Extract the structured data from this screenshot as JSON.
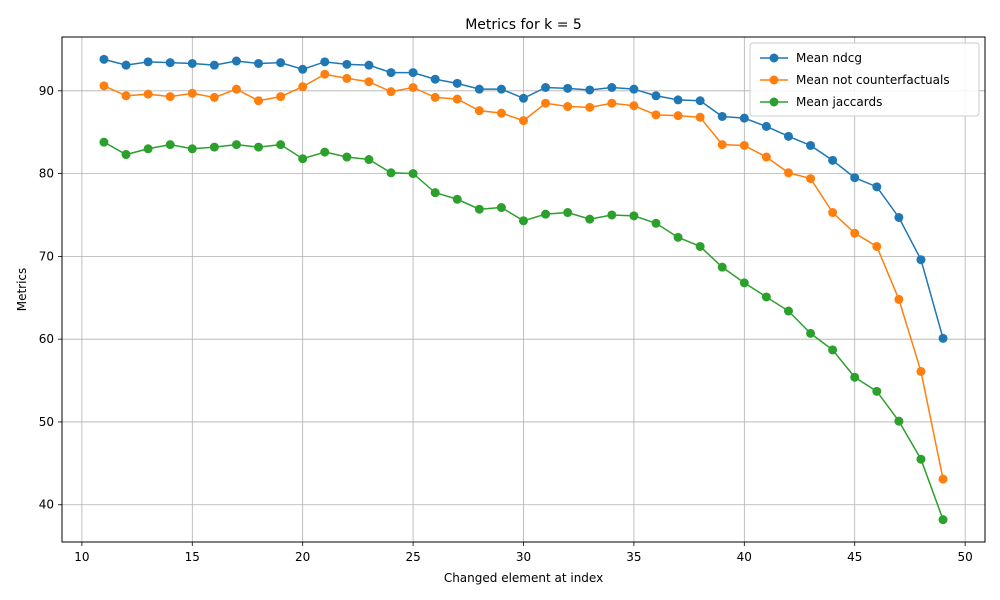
{
  "chart_data": {
    "type": "line",
    "title": "Metrics for k = 5",
    "xlabel": "Changed element at index",
    "ylabel": "Metrics",
    "xlim": [
      9.1,
      50.9
    ],
    "ylim": [
      35.5,
      96.5
    ],
    "xticks": [
      10,
      15,
      20,
      25,
      30,
      35,
      40,
      45,
      50
    ],
    "yticks": [
      40,
      50,
      60,
      70,
      80,
      90
    ],
    "grid": true,
    "legend_position": "top-right",
    "x": [
      11,
      12,
      13,
      14,
      15,
      16,
      17,
      18,
      19,
      20,
      21,
      22,
      23,
      24,
      25,
      26,
      27,
      28,
      29,
      30,
      31,
      32,
      33,
      34,
      35,
      36,
      37,
      38,
      39,
      40,
      41,
      42,
      43,
      44,
      45,
      46,
      47,
      48,
      49
    ],
    "series": [
      {
        "name": "Mean ndcg",
        "color": "#1f77b4",
        "values": [
          93.8,
          93.1,
          93.5,
          93.4,
          93.3,
          93.1,
          93.6,
          93.3,
          93.4,
          92.6,
          93.5,
          93.2,
          93.1,
          92.2,
          92.2,
          91.4,
          90.9,
          90.2,
          90.2,
          89.1,
          90.4,
          90.3,
          90.1,
          90.4,
          90.2,
          89.4,
          88.9,
          88.8,
          86.9,
          86.7,
          85.7,
          84.5,
          83.4,
          81.6,
          79.5,
          78.4,
          74.7,
          69.6,
          60.1
        ]
      },
      {
        "name": "Mean not counterfactuals",
        "color": "#ff7f0e",
        "values": [
          90.6,
          89.4,
          89.6,
          89.3,
          89.7,
          89.2,
          90.2,
          88.8,
          89.3,
          90.5,
          92.0,
          91.5,
          91.1,
          89.9,
          90.4,
          89.2,
          89.0,
          87.6,
          87.3,
          86.4,
          88.5,
          88.1,
          88.0,
          88.5,
          88.2,
          87.1,
          87.0,
          86.8,
          83.5,
          83.4,
          82.0,
          80.1,
          79.4,
          75.3,
          72.8,
          71.2,
          64.8,
          56.1,
          43.1
        ]
      },
      {
        "name": "Mean jaccards",
        "color": "#2ca02c",
        "values": [
          83.8,
          82.3,
          83.0,
          83.5,
          83.0,
          83.2,
          83.5,
          83.2,
          83.5,
          81.8,
          82.6,
          82.0,
          81.7,
          80.1,
          80.0,
          77.7,
          76.9,
          75.7,
          75.9,
          74.3,
          75.1,
          75.3,
          74.5,
          75.0,
          74.9,
          74.0,
          72.3,
          71.2,
          68.7,
          66.8,
          65.1,
          63.4,
          60.7,
          58.7,
          55.4,
          53.7,
          50.1,
          45.5,
          38.2
        ]
      }
    ]
  }
}
